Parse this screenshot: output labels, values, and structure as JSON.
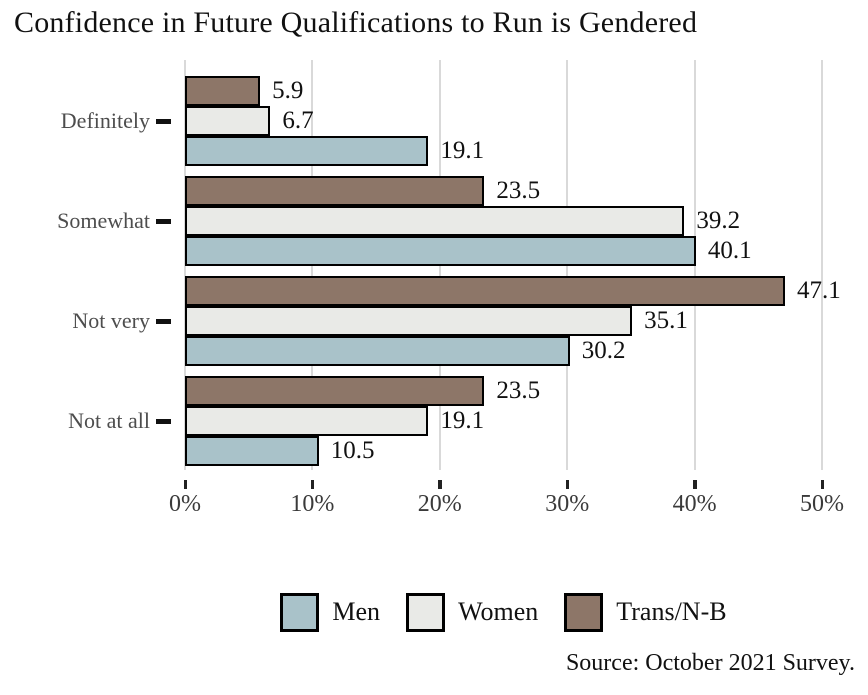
{
  "title": "Confidence in Future Qualifications to Run is Gendered",
  "source_note": "Source: October 2021 Survey.",
  "colors": {
    "men": "#a9c2c9",
    "women": "#e9eae7",
    "trans_nb": "#8d7668",
    "bar_outline": "#000000",
    "gridline": "#d9d9d9",
    "category_text": "#4d4d4d",
    "tick_text": "#3a3a3a"
  },
  "chart_data": {
    "type": "bar",
    "orientation": "horizontal",
    "title": "Confidence in Future Qualifications to Run is Gendered",
    "categories": [
      "Definitely",
      "Somewhat",
      "Not very",
      "Not at all"
    ],
    "series": [
      {
        "name": "Men",
        "color": "#a9c2c9",
        "values": [
          19.1,
          40.1,
          30.2,
          10.5
        ]
      },
      {
        "name": "Women",
        "color": "#e9eae7",
        "values": [
          6.7,
          39.2,
          35.1,
          19.1
        ]
      },
      {
        "name": "Trans/N-B",
        "color": "#8d7668",
        "values": [
          5.9,
          23.5,
          47.1,
          23.5
        ]
      }
    ],
    "bar_order_top_to_bottom": [
      "Trans/N-B",
      "Women",
      "Men"
    ],
    "value_labels": true,
    "xlabel": "",
    "ylabel": "",
    "xlim": [
      0,
      50
    ],
    "x_tick_values": [
      0,
      10,
      20,
      30,
      40,
      50
    ],
    "x_tick_labels": [
      "0%",
      "10%",
      "20%",
      "30%",
      "40%",
      "50%"
    ],
    "grid": "vertical-only",
    "legend_position": "bottom-center"
  }
}
